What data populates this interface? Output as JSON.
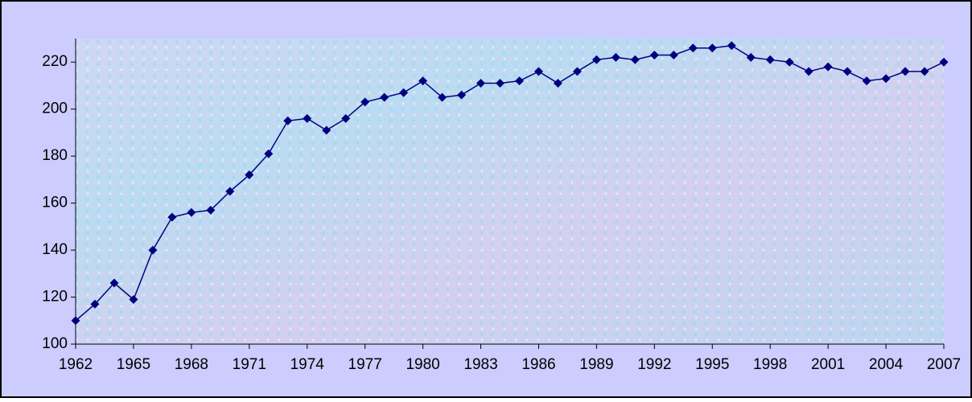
{
  "chart_data": {
    "type": "line",
    "x": [
      1962,
      1963,
      1964,
      1965,
      1966,
      1967,
      1968,
      1969,
      1970,
      1971,
      1972,
      1973,
      1974,
      1975,
      1976,
      1977,
      1978,
      1979,
      1980,
      1981,
      1982,
      1983,
      1984,
      1985,
      1986,
      1987,
      1988,
      1989,
      1990,
      1991,
      1992,
      1993,
      1994,
      1995,
      1996,
      1997,
      1998,
      1999,
      2000,
      2001,
      2002,
      2003,
      2004,
      2005,
      2006,
      2007
    ],
    "series": [
      {
        "color": "#000080",
        "values": [
          110,
          117,
          126,
          119,
          140,
          154,
          156,
          157,
          165,
          172,
          181,
          195,
          196,
          191,
          196,
          203,
          205,
          207,
          212,
          205,
          206,
          211,
          211,
          212,
          216,
          211,
          216,
          221,
          222,
          221,
          223,
          223,
          226,
          226,
          227,
          222,
          221,
          220,
          216,
          218,
          216,
          212,
          213,
          216,
          216,
          220
        ]
      }
    ],
    "xlim": [
      1962,
      2007
    ],
    "xticks": [
      1962,
      1965,
      1968,
      1971,
      1974,
      1977,
      1980,
      1983,
      1986,
      1989,
      1992,
      1995,
      1998,
      2001,
      2004,
      2007
    ],
    "ylim": [
      100,
      230
    ],
    "yticks": [
      100,
      120,
      140,
      160,
      180,
      200,
      220
    ]
  }
}
